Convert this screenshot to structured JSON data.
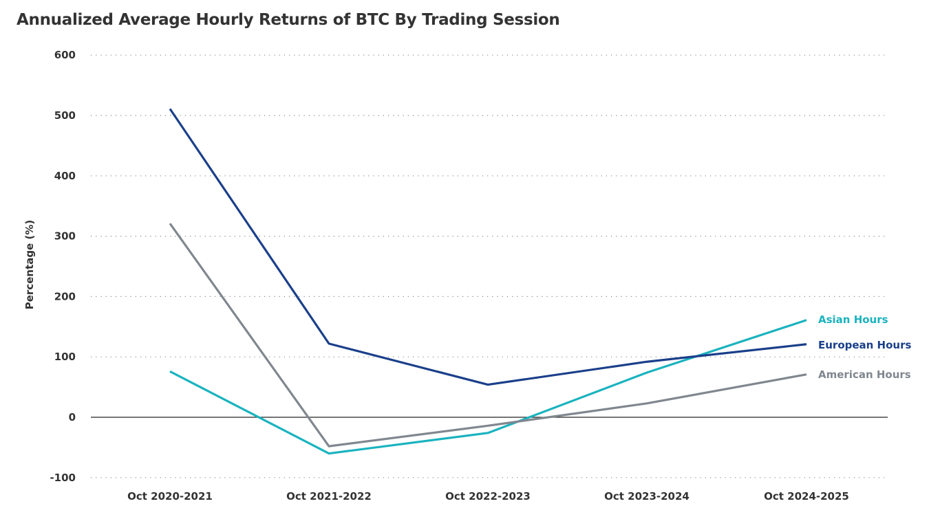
{
  "chart_data": {
    "type": "line",
    "title": "Annualized Average Hourly Returns of BTC By Trading Session",
    "xlabel": "",
    "ylabel": "Percentage (%)",
    "ylim": [
      -100,
      600
    ],
    "yticks": [
      600,
      500,
      400,
      300,
      200,
      100,
      0,
      -100
    ],
    "grid": true,
    "legend": "inline-right",
    "categories": [
      "Oct 2020-2021",
      "Oct 2021-2022",
      "Oct 2022-2023",
      "Oct 2023-2024",
      "Oct 2024-2025"
    ],
    "series": [
      {
        "name": "Asian Hours",
        "color": "#1ab3bf",
        "values": [
          76,
          -60,
          -26,
          74,
          161
        ]
      },
      {
        "name": "European Hours",
        "color": "#1a3f8a",
        "values": [
          511,
          122,
          54,
          92,
          121
        ]
      },
      {
        "name": "American Hours",
        "color": "#80878f",
        "values": [
          321,
          -48,
          -14,
          23,
          71
        ]
      }
    ]
  }
}
